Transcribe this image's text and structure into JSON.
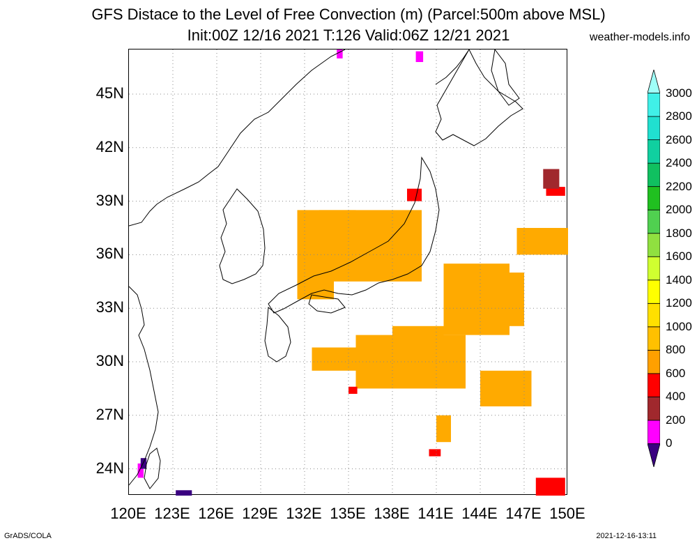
{
  "title": {
    "line1": "GFS Distace to the Level of Free Convection (m) (Parcel:500m above MSL)",
    "line2": "Init:00Z 12/16 2021 T:126 Valid:06Z 12/21 2021"
  },
  "site": "weather-models.info",
  "footer": {
    "left": "GrADS/COLA",
    "right": "2021-12-16-13:11"
  },
  "map": {
    "lon_range": [
      120,
      150
    ],
    "lat_range": [
      22.5,
      47.5
    ],
    "lat_ticks": [
      {
        "value": 45,
        "label": "45N"
      },
      {
        "value": 42,
        "label": "42N"
      },
      {
        "value": 39,
        "label": "39N"
      },
      {
        "value": 36,
        "label": "36N"
      },
      {
        "value": 33,
        "label": "33N"
      },
      {
        "value": 30,
        "label": "30N"
      },
      {
        "value": 27,
        "label": "27N"
      },
      {
        "value": 24,
        "label": "24N"
      }
    ],
    "lon_ticks": [
      {
        "value": 120,
        "label": "120E"
      },
      {
        "value": 123,
        "label": "123E"
      },
      {
        "value": 126,
        "label": "126E"
      },
      {
        "value": 129,
        "label": "129E"
      },
      {
        "value": 132,
        "label": "132E"
      },
      {
        "value": 135,
        "label": "135E"
      },
      {
        "value": 138,
        "label": "138E"
      },
      {
        "value": 141,
        "label": "141E"
      },
      {
        "value": 144,
        "label": "144E"
      },
      {
        "value": 147,
        "label": "147E"
      },
      {
        "value": 150,
        "label": "150E"
      }
    ],
    "grid": true
  },
  "colorbar": {
    "levels": [
      {
        "value": 0,
        "label": "0"
      },
      {
        "value": 200,
        "label": "200"
      },
      {
        "value": 400,
        "label": "400"
      },
      {
        "value": 600,
        "label": "600"
      },
      {
        "value": 800,
        "label": "800"
      },
      {
        "value": 1000,
        "label": "1000"
      },
      {
        "value": 1200,
        "label": "1200"
      },
      {
        "value": 1400,
        "label": "1400"
      },
      {
        "value": 1600,
        "label": "1600"
      },
      {
        "value": 1800,
        "label": "1800"
      },
      {
        "value": 2000,
        "label": "2000"
      },
      {
        "value": 2200,
        "label": "2200"
      },
      {
        "value": 2400,
        "label": "2400"
      },
      {
        "value": 2600,
        "label": "2600"
      },
      {
        "value": 2800,
        "label": "2800"
      },
      {
        "value": 3000,
        "label": "3000"
      }
    ],
    "colors": [
      "#3a0080",
      "#ff00ff",
      "#a0282d",
      "#ff0000",
      "#ffa000",
      "#ffc000",
      "#ffe000",
      "#ffff00",
      "#d0ff30",
      "#90e040",
      "#50d050",
      "#20c020",
      "#10c060",
      "#10d0a0",
      "#20e0d0",
      "#40f0e8",
      "#a0fff8"
    ]
  },
  "fields": [
    {
      "level": "600-800",
      "color": "#ffaa00",
      "regions": [
        {
          "lon": [
            131.5,
            140
          ],
          "lat": [
            34.5,
            38.5
          ]
        },
        {
          "lon": [
            133,
            135.5
          ],
          "lat": [
            36,
            38.5
          ]
        },
        {
          "lon": [
            131.5,
            134
          ],
          "lat": [
            33.5,
            35.5
          ]
        },
        {
          "lon": [
            136,
            139.5
          ],
          "lat": [
            35,
            37.5
          ]
        },
        {
          "lon": [
            141.5,
            146
          ],
          "lat": [
            31.5,
            35.5
          ]
        },
        {
          "lon": [
            143,
            147
          ],
          "lat": [
            32,
            35
          ]
        },
        {
          "lon": [
            135.5,
            143
          ],
          "lat": [
            28.5,
            31.5
          ]
        },
        {
          "lon": [
            138,
            141.5
          ],
          "lat": [
            30,
            32
          ]
        },
        {
          "lon": [
            132.5,
            135.5
          ],
          "lat": [
            29.5,
            30.8
          ]
        },
        {
          "lon": [
            144,
            147.5
          ],
          "lat": [
            27.5,
            29.5
          ]
        },
        {
          "lon": [
            146.5,
            150
          ],
          "lat": [
            36,
            37.5
          ]
        },
        {
          "lon": [
            141,
            142
          ],
          "lat": [
            25.5,
            27
          ]
        }
      ]
    },
    {
      "level": "400-600",
      "color": "#ff0000",
      "regions": [
        {
          "lon": [
            139,
            140
          ],
          "lat": [
            39,
            39.7
          ]
        },
        {
          "lon": [
            147.8,
            149.8
          ],
          "lat": [
            22.5,
            23.5
          ]
        },
        {
          "lon": [
            140.5,
            141.3
          ],
          "lat": [
            24.7,
            25.1
          ]
        },
        {
          "lon": [
            148.5,
            149.8
          ],
          "lat": [
            39.3,
            39.8
          ]
        },
        {
          "lon": [
            135,
            135.6
          ],
          "lat": [
            28.2,
            28.6
          ]
        }
      ]
    },
    {
      "level": "200-400",
      "color": "#a0282d",
      "regions": [
        {
          "lon": [
            148.3,
            149.4
          ],
          "lat": [
            39.7,
            40.8
          ]
        }
      ]
    },
    {
      "level": "0-200",
      "color": "#ff00ff",
      "regions": [
        {
          "lon": [
            120.6,
            121
          ],
          "lat": [
            23.5,
            24.3
          ]
        },
        {
          "lon": [
            134.2,
            134.6
          ],
          "lat": [
            47,
            47.5
          ]
        },
        {
          "lon": [
            139.6,
            140.1
          ],
          "lat": [
            46.8,
            47.4
          ]
        }
      ]
    },
    {
      "level": "<0",
      "color": "#3a0080",
      "regions": [
        {
          "lon": [
            123.2,
            124.3
          ],
          "lat": [
            22.5,
            22.8
          ]
        },
        {
          "lon": [
            120.8,
            121.2
          ],
          "lat": [
            24,
            24.6
          ]
        }
      ]
    }
  ]
}
